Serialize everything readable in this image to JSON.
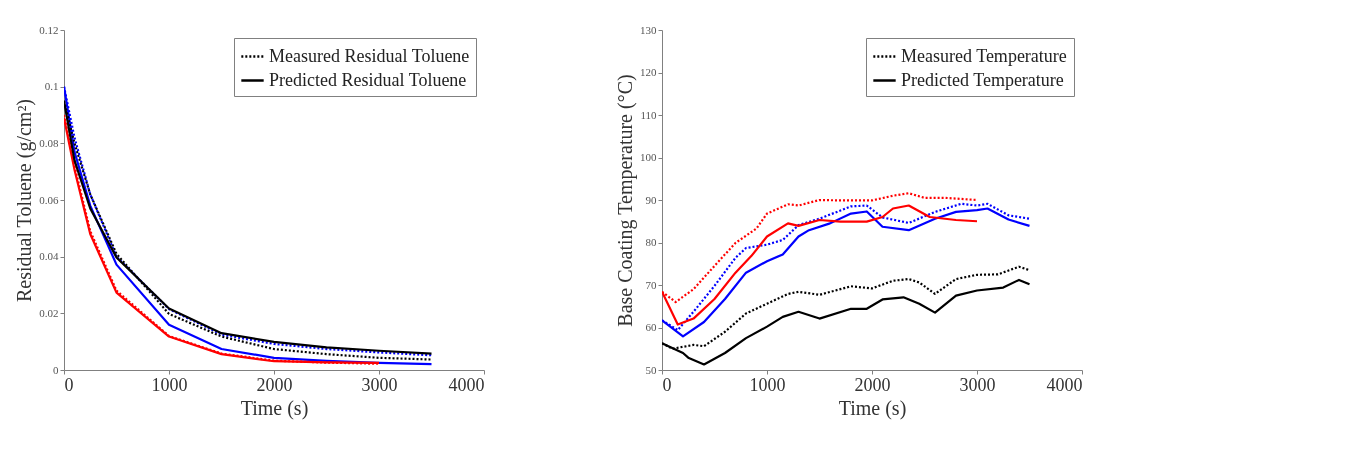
{
  "chart_data": [
    {
      "type": "line",
      "xlabel": "Time (s)",
      "ylabel": "Residual Toluene (g/cm²)",
      "xlim": [
        0,
        4000
      ],
      "xticks": [
        0,
        1000,
        2000,
        3000,
        4000
      ],
      "ylim": [
        0,
        0.12
      ],
      "yticks": [
        0,
        0.02,
        0.04,
        0.06,
        0.08,
        0.1,
        0.12
      ],
      "grid": false,
      "legend": "top right",
      "series": [
        {
          "name": "Measured Residual Toluene",
          "color": "#000000",
          "line_style": "dotted",
          "x": [
            0,
            100,
            250,
            500,
            1000,
            1500,
            2000,
            2500,
            3000,
            3500
          ],
          "values": [
            0.095,
            0.08,
            0.062,
            0.041,
            0.0198,
            0.0118,
            0.0074,
            0.0056,
            0.0043,
            0.0037
          ]
        },
        {
          "name": "Predicted Residual Toluene",
          "color": "#000000",
          "line_style": "solid",
          "x": [
            0,
            100,
            250,
            500,
            1000,
            1500,
            2000,
            2500,
            3000,
            3500
          ],
          "values": [
            0.095,
            0.074,
            0.057,
            0.0397,
            0.0217,
            0.013,
            0.0099,
            0.008,
            0.0068,
            0.0058
          ]
        },
        {
          "color": "#0000ff",
          "line_style": "dotted",
          "x": [
            0,
            100,
            250,
            500,
            1000,
            1500,
            2000,
            2500,
            3000,
            3500
          ],
          "values": [
            0.1,
            0.082,
            0.062,
            0.04,
            0.0215,
            0.0125,
            0.0092,
            0.0074,
            0.0062,
            0.0052
          ]
        },
        {
          "color": "#0000ff",
          "line_style": "solid",
          "x": [
            0,
            100,
            250,
            500,
            1000,
            1500,
            2000,
            2500,
            3000,
            3500
          ],
          "values": [
            0.1,
            0.077,
            0.058,
            0.0372,
            0.016,
            0.0074,
            0.0043,
            0.0032,
            0.0025,
            0.0021
          ]
        },
        {
          "color": "#ff0000",
          "line_style": "dotted",
          "x": [
            0,
            100,
            250,
            500,
            1000,
            1500,
            2000,
            2500,
            3000
          ],
          "values": [
            0.09,
            0.072,
            0.049,
            0.028,
            0.012,
            0.0058,
            0.0033,
            0.0026,
            0.0022
          ]
        },
        {
          "color": "#ff0000",
          "line_style": "solid",
          "x": [
            0,
            100,
            250,
            500,
            1000,
            1500,
            2000,
            2500,
            3000
          ],
          "values": [
            0.089,
            0.0707,
            0.048,
            0.0273,
            0.0118,
            0.0056,
            0.0031,
            0.0027,
            0.0025
          ]
        }
      ]
    },
    {
      "type": "line",
      "xlabel": "Time (s)",
      "ylabel": "Base Coating Temperature (°C)",
      "xlim": [
        0,
        4000
      ],
      "xticks": [
        0,
        1000,
        2000,
        3000,
        4000
      ],
      "ylim": [
        50,
        130
      ],
      "yticks": [
        50,
        60,
        70,
        80,
        90,
        100,
        110,
        120,
        130
      ],
      "grid": false,
      "legend": "top right",
      "series": [
        {
          "name": "Measured Temperature",
          "color": "#000000",
          "line_style": "dotted",
          "x": [
            0,
            100,
            300,
            400,
            600,
            800,
            1000,
            1200,
            1300,
            1500,
            1800,
            2000,
            2200,
            2350,
            2450,
            2600,
            2800,
            3000,
            3200,
            3400,
            3500
          ],
          "values": [
            56.3,
            55,
            55.9,
            55.6,
            59,
            63.3,
            65.6,
            67.9,
            68.4,
            67.7,
            69.7,
            69.2,
            71,
            71.4,
            70.6,
            67.9,
            71.4,
            72.4,
            72.5,
            74.3,
            73.5
          ]
        },
        {
          "name": "Predicted Temperature",
          "color": "#000000",
          "line_style": "solid",
          "x": [
            0,
            200,
            250,
            400,
            600,
            800,
            1000,
            1150,
            1300,
            1500,
            1800,
            1950,
            2100,
            2300,
            2450,
            2600,
            2800,
            3000,
            3250,
            3400,
            3500
          ],
          "values": [
            56.3,
            54,
            52.9,
            51.3,
            54,
            57.5,
            60.2,
            62.5,
            63.7,
            62.1,
            64.4,
            64.4,
            66.6,
            67.1,
            65.6,
            63.5,
            67.5,
            68.7,
            69.4,
            71.2,
            70.2
          ]
        },
        {
          "color": "#0000ff",
          "line_style": "dotted",
          "x": [
            0,
            150,
            300,
            500,
            700,
            800,
            1000,
            1150,
            1300,
            1500,
            1800,
            1950,
            2100,
            2350,
            2600,
            2850,
            3000,
            3100,
            3300,
            3500
          ],
          "values": [
            61.7,
            59.4,
            63.7,
            69.8,
            76.4,
            78.7,
            79.5,
            80.6,
            84.1,
            85.6,
            88.5,
            88.7,
            85.9,
            84.6,
            87.2,
            89.1,
            88.7,
            89.1,
            86.4,
            85.6
          ]
        },
        {
          "color": "#0000ff",
          "line_style": "solid",
          "x": [
            0,
            200,
            400,
            600,
            800,
            1000,
            1150,
            1300,
            1400,
            1600,
            1800,
            1950,
            2100,
            2350,
            2600,
            2800,
            3000,
            3100,
            3300,
            3500
          ],
          "values": [
            61.7,
            57.9,
            61.3,
            66.7,
            72.9,
            75.6,
            77.2,
            81.4,
            82.9,
            84.5,
            86.8,
            87.3,
            83.7,
            82.9,
            85.6,
            87.2,
            87.6,
            88,
            85.4,
            83.9
          ]
        },
        {
          "color": "#ff0000",
          "line_style": "dotted",
          "x": [
            0,
            130,
            300,
            500,
            700,
            900,
            1000,
            1200,
            1300,
            1500,
            1700,
            2000,
            2200,
            2350,
            2500,
            2700,
            3000
          ],
          "values": [
            68.4,
            66,
            69,
            74.5,
            79.9,
            83.3,
            86.8,
            89,
            88.7,
            90,
            89.9,
            89.9,
            91,
            91.6,
            90.5,
            90.5,
            90
          ]
        },
        {
          "color": "#ff0000",
          "line_style": "solid",
          "x": [
            0,
            150,
            300,
            500,
            700,
            850,
            1000,
            1200,
            1300,
            1500,
            1700,
            1950,
            2100,
            2200,
            2350,
            2550,
            2800,
            3000
          ],
          "values": [
            68.4,
            60.7,
            62.1,
            66.7,
            72.9,
            76.8,
            81.4,
            84.5,
            83.9,
            85.3,
            84.9,
            84.9,
            86,
            88,
            88.7,
            86,
            85.3,
            85
          ]
        }
      ]
    }
  ]
}
